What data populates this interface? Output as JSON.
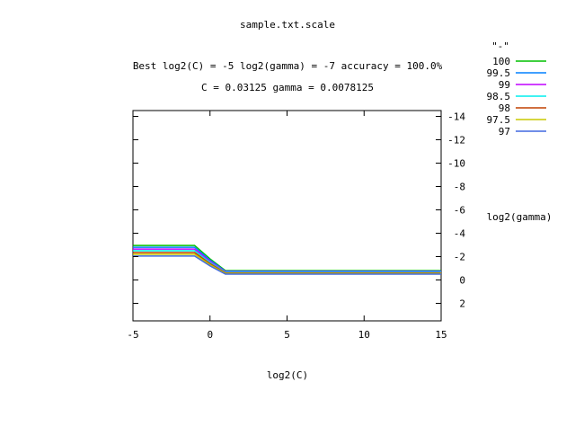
{
  "header": {
    "title": "sample.txt.scale",
    "best_line": "Best log2(C) = -5  log2(gamma) = -7  accuracy = 100.0%",
    "params_line": "C = 0.03125  gamma = 0.0078125"
  },
  "chart_data": {
    "type": "line",
    "xlabel": "log2(C)",
    "ylabel": "log2(gamma)",
    "xlim": [
      -5,
      15
    ],
    "ylim": [
      3.5,
      -14.5
    ],
    "y_reversed": true,
    "y_tick_position": "right",
    "x_ticks": [
      -5,
      0,
      5,
      10,
      15
    ],
    "y_ticks": [
      -14,
      -12,
      -10,
      -8,
      -6,
      -4,
      -2,
      0,
      2
    ],
    "legend_title": "\"-\"",
    "legend_position": "top-right-outside",
    "grid": false,
    "series": [
      {
        "name": "100",
        "color": "#00c000",
        "x": [
          -5,
          -1,
          0,
          1,
          15
        ],
        "y": [
          -2.95,
          -2.95,
          -1.8,
          -0.8,
          -0.8
        ]
      },
      {
        "name": "99.5",
        "color": "#0080ff",
        "x": [
          -5,
          -1,
          0,
          1,
          15
        ],
        "y": [
          -2.8,
          -2.8,
          -1.7,
          -0.75,
          -0.75
        ]
      },
      {
        "name": "99",
        "color": "#c000ff",
        "x": [
          -5,
          -1,
          0,
          1,
          15
        ],
        "y": [
          -2.65,
          -2.65,
          -1.6,
          -0.7,
          -0.7
        ]
      },
      {
        "name": "98.5",
        "color": "#00eeee",
        "x": [
          -5,
          -1,
          0,
          1,
          15
        ],
        "y": [
          -2.5,
          -2.5,
          -1.5,
          -0.65,
          -0.65
        ]
      },
      {
        "name": "98",
        "color": "#c04000",
        "x": [
          -5,
          -1,
          0,
          1,
          15
        ],
        "y": [
          -2.35,
          -2.35,
          -1.4,
          -0.6,
          -0.6
        ]
      },
      {
        "name": "97.5",
        "color": "#c8c800",
        "x": [
          -5,
          -1,
          0,
          1,
          15
        ],
        "y": [
          -2.2,
          -2.2,
          -1.3,
          -0.55,
          -0.55
        ]
      },
      {
        "name": "97",
        "color": "#4169e1",
        "x": [
          -5,
          -1,
          0,
          1,
          15
        ],
        "y": [
          -2.05,
          -2.05,
          -1.2,
          -0.5,
          -0.5
        ]
      }
    ]
  }
}
